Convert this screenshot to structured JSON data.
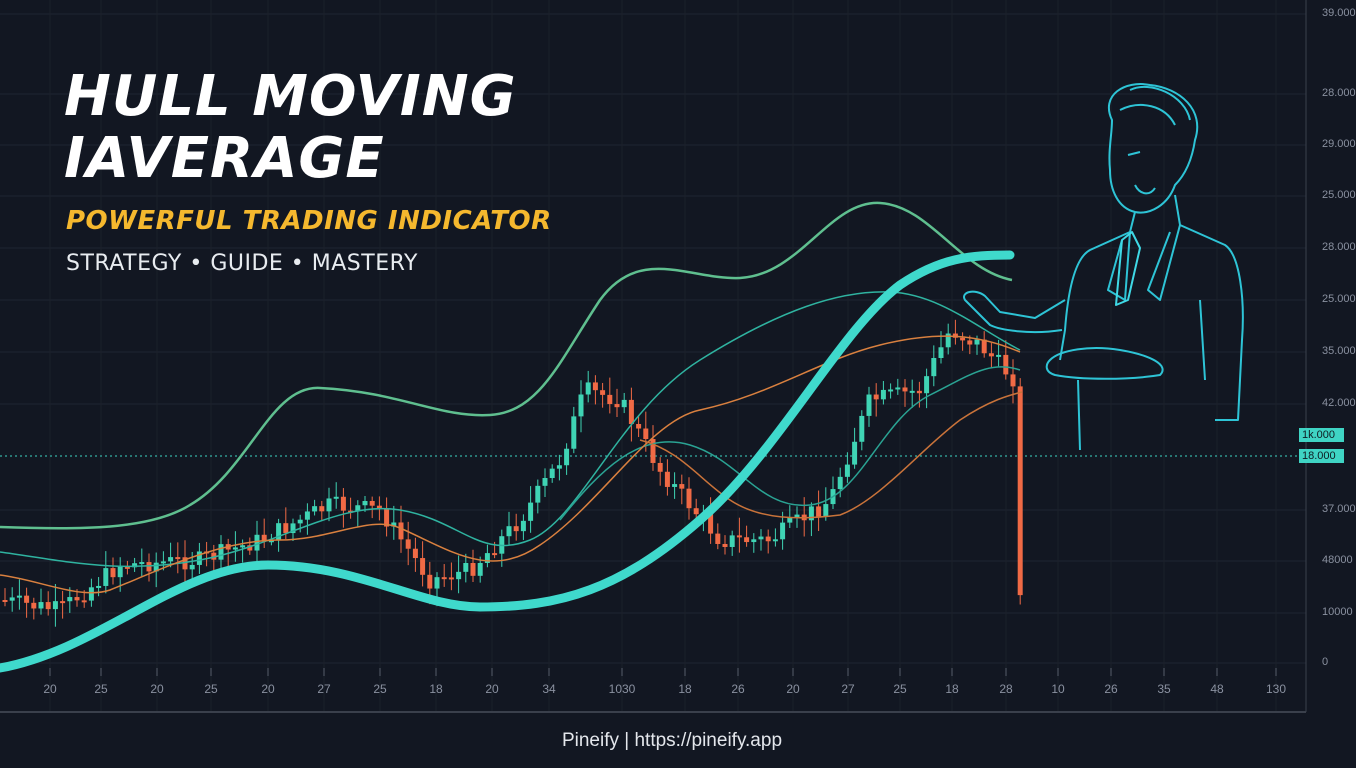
{
  "header": {
    "title_line1": "HULL MOVING",
    "title_line2": "IAVERAGE",
    "subtitle": "POWERFUL TRADING INDICATOR",
    "tagline": "STRATEGY • GUIDE • MASTERY"
  },
  "axis": {
    "y_labels": [
      "39.000",
      "28.000",
      "29.000",
      "25.000",
      "28.000",
      "25.000",
      "35.000",
      "42.000",
      "37.000",
      "48000",
      "10000",
      "0"
    ],
    "price_badges": [
      "1k.000",
      "18.000"
    ],
    "x_labels": [
      "20",
      "25",
      "20",
      "25",
      "20",
      "27",
      "25",
      "18",
      "20",
      "34",
      "1030",
      "18",
      "26",
      "20",
      "27",
      "25",
      "18",
      "28",
      "10",
      "26",
      "35",
      "48",
      "130"
    ]
  },
  "colors": {
    "background": "#121722",
    "hull_line": "#3fd9cc",
    "upper_band": "#5fbf8f",
    "orange_ma": "#d9803f",
    "bull_candle": "#3fd4b4",
    "bear_candle": "#f06a45",
    "title": "#ffffff",
    "subtitle": "#f5b82e",
    "figure_outline": "#2ec4d6"
  },
  "illustration": {
    "icon": "businessman-outline-icon"
  },
  "footer": {
    "text": "Pineify | https://pineify.app"
  }
}
